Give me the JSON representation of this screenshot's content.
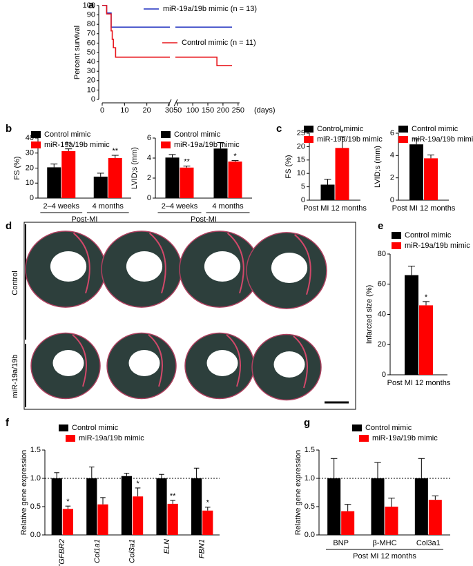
{
  "chart_data": [
    {
      "type": "step",
      "panel": "a",
      "ylabel": "Percent survival",
      "xlabel": "(days)",
      "xlim": [
        0,
        30
      ],
      "xticks": [
        0,
        10,
        20,
        30
      ],
      "x2lim": [
        45,
        255
      ],
      "x2ticks": [
        50,
        100,
        150,
        200,
        250
      ],
      "ylim": [
        0,
        100
      ],
      "yticks": [
        0,
        10,
        20,
        30,
        40,
        50,
        60,
        70,
        80,
        90,
        100
      ],
      "series": [
        {
          "name": "miR-19a/19b mimic (n = 13)",
          "color": "#1f2fbf",
          "x": [
            0,
            2,
            2,
            4,
            4,
            230
          ],
          "values": [
            100,
            100,
            92,
            92,
            77,
            77
          ]
        },
        {
          "name": "Control mimic (n = 11)",
          "color": "#e8151b",
          "x": [
            0,
            2,
            2,
            4,
            4,
            4.5,
            4.5,
            5,
            5,
            6,
            6,
            180,
            180,
            230
          ],
          "values": [
            100,
            100,
            91,
            91,
            73,
            73,
            64,
            64,
            55,
            55,
            45,
            45,
            36,
            36
          ]
        }
      ]
    },
    {
      "type": "bar",
      "panel": "b",
      "ylabel": "FS (%)",
      "categories": [
        "2–4 weeks",
        "4 months"
      ],
      "group_label": "Post-MI",
      "ylim": [
        0,
        40
      ],
      "yticks": [
        0,
        10,
        20,
        30,
        40
      ],
      "series": [
        {
          "name": "Control mimic",
          "color": "#000000",
          "values": [
            20.5,
            14.3
          ],
          "errors": [
            2.2,
            2.3
          ]
        },
        {
          "name": "miR-19a/19b mimic",
          "color": "#ff0000",
          "values": [
            31.3,
            26.7
          ],
          "errors": [
            1.5,
            1.8
          ],
          "annotations": [
            "**",
            "**"
          ]
        }
      ]
    },
    {
      "type": "bar",
      "ylabel": "LVID;s (mm)",
      "categories": [
        "2–4 weeks",
        "4 months"
      ],
      "group_label": "Post-MI",
      "ylim": [
        0,
        6
      ],
      "yticks": [
        0,
        2,
        4,
        6
      ],
      "series": [
        {
          "name": "Control mimic",
          "color": "#000000",
          "values": [
            4.05,
            4.95
          ],
          "errors": [
            0.3,
            0.6
          ]
        },
        {
          "name": "miR-19a/19b mimic",
          "color": "#ff0000",
          "values": [
            3.05,
            3.65
          ],
          "errors": [
            0.15,
            0.1
          ],
          "annotations": [
            "**",
            "*"
          ]
        }
      ]
    },
    {
      "type": "bar",
      "panel": "c",
      "ylabel": "FS (%)",
      "categories": [
        "Post MI 12 months"
      ],
      "ylim": [
        0,
        25
      ],
      "yticks": [
        0,
        5,
        10,
        15,
        20,
        25
      ],
      "series": [
        {
          "name": "Control mimic",
          "color": "#000000",
          "values": [
            5.8
          ],
          "errors": [
            2
          ]
        },
        {
          "name": "miR-19a/19b mimic",
          "color": "#ff0000",
          "values": [
            19.5
          ],
          "errors": [
            4.2
          ],
          "annotations": [
            "*"
          ]
        }
      ]
    },
    {
      "type": "bar",
      "ylabel": "LVID;s (mm)",
      "categories": [
        "Post MI 12 months"
      ],
      "ylim": [
        0,
        6
      ],
      "yticks": [
        0,
        2,
        4,
        6
      ],
      "series": [
        {
          "name": "Control mimic",
          "color": "#000000",
          "values": [
            5.0
          ],
          "errors": [
            0.5
          ]
        },
        {
          "name": "miR-19a/19b mimic",
          "color": "#ff0000",
          "values": [
            3.75
          ],
          "errors": [
            0.3
          ]
        }
      ]
    },
    {
      "type": "bar",
      "panel": "e",
      "ylabel": "Infarcted size (%)",
      "categories": [
        "Post MI 12 months"
      ],
      "ylim": [
        0,
        80
      ],
      "yticks": [
        0,
        20,
        40,
        60,
        80
      ],
      "series": [
        {
          "name": "Control mimic",
          "color": "#000000",
          "values": [
            66
          ],
          "errors": [
            6
          ]
        },
        {
          "name": "miR-19a/19b mimic",
          "color": "#ff0000",
          "values": [
            46
          ],
          "errors": [
            2.5
          ],
          "annotations": [
            "*"
          ]
        }
      ]
    },
    {
      "type": "bar",
      "panel": "f",
      "ylabel": "Relative gene expression",
      "categories": [
        "TGFBR2",
        "Col1a1",
        "Col3a1",
        "ELN",
        "FBN1"
      ],
      "ylim": [
        0,
        1.5
      ],
      "yticks": [
        {
          "value": 0,
          "label": "0.0"
        },
        0.5,
        {
          "value": 1,
          "label": "1.0"
        },
        1.5
      ],
      "refline": 1,
      "series": [
        {
          "name": "Control mimic",
          "color": "#000000",
          "values": [
            1,
            1,
            1.04,
            1,
            1
          ],
          "errors": [
            0.1,
            0.2,
            0.05,
            0.07,
            0.18
          ]
        },
        {
          "name": "miR-19a/19b mimic",
          "color": "#ff0000",
          "values": [
            0.46,
            0.54,
            0.68,
            0.55,
            0.43
          ],
          "errors": [
            0.05,
            0.12,
            0.15,
            0.06,
            0.06
          ],
          "annotations": [
            "*",
            null,
            "*",
            "**",
            "*"
          ]
        }
      ]
    },
    {
      "type": "bar",
      "panel": "g",
      "ylabel": "Relative gene expression",
      "categories": [
        "BNP",
        "β-MHC",
        "Col3a1"
      ],
      "group_label": "Post MI 12 months",
      "ylim": [
        0,
        1.5
      ],
      "yticks": [
        {
          "value": 0,
          "label": "0.0"
        },
        0.5,
        {
          "value": 1,
          "label": "1.0"
        },
        1.5
      ],
      "refline": 1,
      "series": [
        {
          "name": "Control mimic",
          "color": "#000000",
          "values": [
            1,
            1,
            1
          ],
          "errors": [
            0.35,
            0.28,
            0.35
          ]
        },
        {
          "name": "miR-19a/19b mimic",
          "color": "#ff0000",
          "values": [
            0.42,
            0.5,
            0.62
          ],
          "errors": [
            0.12,
            0.15,
            0.07
          ]
        }
      ]
    }
  ],
  "image_panel": {
    "panel": "d",
    "rows": [
      "Control",
      "miR-19a/19b"
    ]
  }
}
